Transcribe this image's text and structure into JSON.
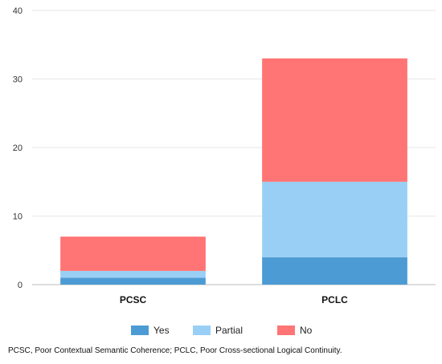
{
  "chart_data": {
    "type": "bar",
    "stacked": true,
    "categories": [
      "PCSC",
      "PCLC"
    ],
    "series": [
      {
        "name": "Yes",
        "values": [
          1,
          4
        ],
        "color": "#4d9bd4"
      },
      {
        "name": "Partial",
        "values": [
          1,
          11
        ],
        "color": "#99cff5"
      },
      {
        "name": "No",
        "values": [
          5,
          18
        ],
        "color": "#ff7474"
      }
    ],
    "ylim": [
      0,
      40
    ],
    "yticks": [
      0,
      10,
      20,
      30,
      40
    ],
    "grid": true,
    "legend_position": "bottom",
    "xlabel": "",
    "ylabel": ""
  },
  "footnote": "PCSC, Poor Contextual Semantic Coherence; PCLC, Poor Cross-sectional Logical Continuity."
}
